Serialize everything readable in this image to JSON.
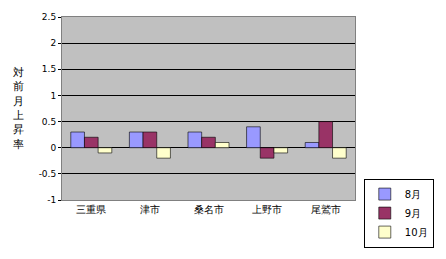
{
  "chart_data": {
    "type": "bar",
    "y_label": "対前月上昇率",
    "categories": [
      "三重県",
      "津市",
      "桑名市",
      "上野市",
      "尾鷲市"
    ],
    "series": [
      {
        "name": "8月",
        "color": "#9999ff",
        "values": [
          0.3,
          0.3,
          0.3,
          0.4,
          0.1
        ]
      },
      {
        "name": "9月",
        "color": "#993366",
        "values": [
          0.2,
          0.3,
          0.2,
          -0.2,
          0.5
        ]
      },
      {
        "name": "10月",
        "color": "#ffffcc",
        "values": [
          -0.1,
          -0.2,
          0.1,
          -0.1,
          -0.2
        ]
      }
    ],
    "ylim": [
      -1,
      2.5
    ],
    "yticks": [
      -1,
      -0.5,
      0,
      0.5,
      1,
      1.5,
      2,
      2.5
    ],
    "grid": true,
    "legend": "bottom right"
  }
}
